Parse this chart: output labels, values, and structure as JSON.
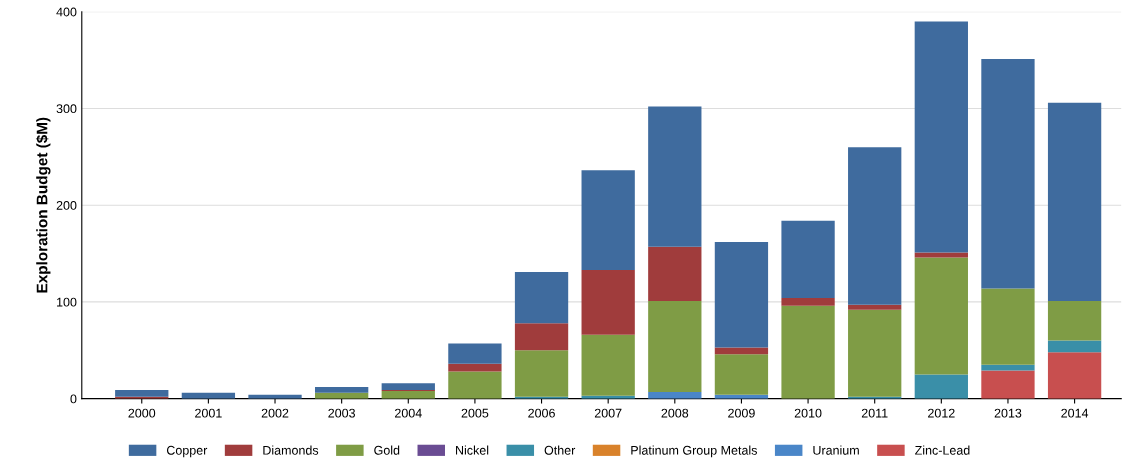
{
  "chart_data": {
    "type": "bar",
    "stacked": true,
    "ylabel": "Exploration Budget ($M)",
    "categories": [
      "2000",
      "2001",
      "2002",
      "2003",
      "2004",
      "2005",
      "2006",
      "2007",
      "2008",
      "2009",
      "2010",
      "2011",
      "2012",
      "2013",
      "2014"
    ],
    "series": [
      {
        "name": "Zinc-Lead",
        "color": "#c84f4f",
        "values": [
          0,
          0,
          0,
          0,
          0,
          0,
          0,
          0,
          0,
          0,
          0,
          0,
          0,
          29,
          48
        ]
      },
      {
        "name": "Uranium",
        "color": "#4a86c8",
        "values": [
          0,
          0,
          0,
          0,
          0,
          0,
          0,
          0,
          7,
          4,
          0,
          0,
          0,
          0,
          0
        ]
      },
      {
        "name": "Platinum Group Metals",
        "color": "#d9822b",
        "values": [
          0,
          0,
          0,
          0,
          0,
          0,
          0,
          0,
          0,
          0,
          0,
          0,
          0,
          0,
          0
        ]
      },
      {
        "name": "Other",
        "color": "#3a8fa8",
        "values": [
          0,
          0,
          0,
          0,
          0,
          0,
          2,
          3,
          0,
          0,
          0,
          2,
          25,
          6,
          12
        ]
      },
      {
        "name": "Nickel",
        "color": "#6a4c93",
        "values": [
          0,
          0,
          0,
          0,
          0,
          0,
          0,
          0,
          0,
          0,
          0,
          0,
          0,
          0,
          0
        ]
      },
      {
        "name": "Gold",
        "color": "#7f9c45",
        "values": [
          0,
          0,
          0,
          6,
          8,
          28,
          48,
          63,
          94,
          42,
          96,
          90,
          121,
          79,
          41
        ]
      },
      {
        "name": "Diamonds",
        "color": "#a03c3c",
        "values": [
          2,
          0,
          0,
          0,
          1,
          8,
          28,
          67,
          56,
          7,
          8,
          5,
          5,
          0,
          0
        ]
      },
      {
        "name": "Copper",
        "color": "#3f6b9e",
        "values": [
          7,
          6,
          4,
          6,
          7,
          21,
          53,
          103,
          145,
          109,
          80,
          163,
          239,
          237,
          205
        ]
      }
    ],
    "ylim": [
      0,
      400
    ],
    "yticks": [
      0,
      100,
      200,
      300,
      400
    ],
    "grid": "y",
    "legend": "bottom"
  }
}
